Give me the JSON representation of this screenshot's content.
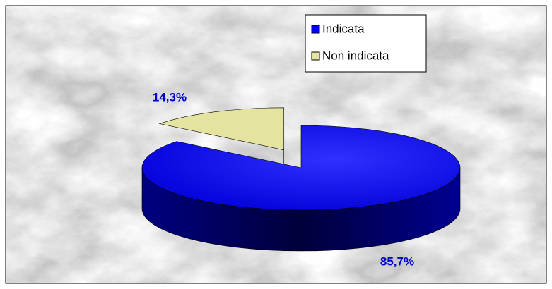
{
  "chart_data": {
    "type": "pie",
    "categories": [
      "Indicata",
      "Non indicata"
    ],
    "values": [
      85.7,
      14.3
    ],
    "value_labels": [
      "85,7%",
      "14,3%"
    ],
    "colors": [
      "#0000ff",
      "#e4e4a0"
    ],
    "legend": "top-right"
  }
}
